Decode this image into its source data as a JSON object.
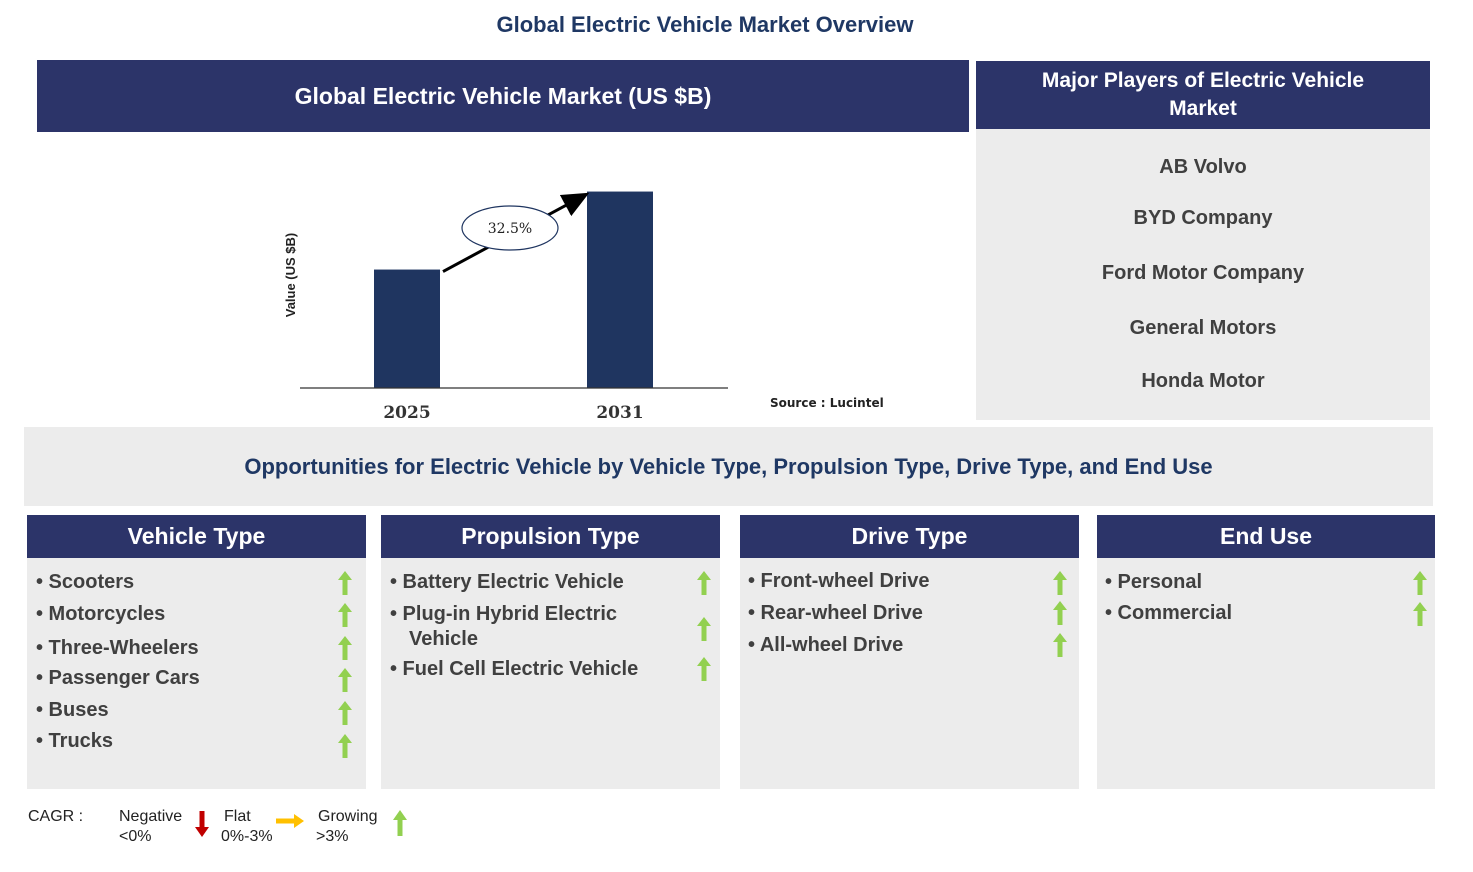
{
  "title": "Global Electric Vehicle Market Overview",
  "chart_header": "Global Electric Vehicle Market (US $B)",
  "chart_data": {
    "type": "bar",
    "categories": [
      "2025",
      "2031"
    ],
    "values": [
      41,
      68
    ],
    "ylim": [
      0,
      72
    ],
    "ylabel": "Value (US $B)",
    "xlabel": "",
    "annotation": "32.5%",
    "source": "Source : Lucintel",
    "bar_color": "#1f3560"
  },
  "players": {
    "title": "Major Players of Electric Vehicle Market",
    "items": [
      "AB Volvo",
      "BYD Company",
      "Ford Motor Company",
      "General Motors",
      "Honda Motor"
    ]
  },
  "opportunities_title": "Opportunities for Electric Vehicle by Vehicle Type, Propulsion Type, Drive Type, and End Use",
  "segments": [
    {
      "title": "Vehicle Type",
      "items": [
        {
          "label": "• Scooters",
          "trend": "growing"
        },
        {
          "label": "• Motorcycles",
          "trend": "growing"
        },
        {
          "label": "• Three-Wheelers",
          "trend": "growing"
        },
        {
          "label": "• Passenger Cars",
          "trend": "growing"
        },
        {
          "label": "• Buses",
          "trend": "growing"
        },
        {
          "label": "• Trucks",
          "trend": "growing"
        }
      ]
    },
    {
      "title": "Propulsion Type",
      "items": [
        {
          "label": "• Battery Electric Vehicle",
          "trend": "growing"
        },
        {
          "label": "• Plug-in Hybrid Electric",
          "label2": "Vehicle",
          "trend": "growing"
        },
        {
          "label": "• Fuel Cell Electric Vehicle",
          "trend": "growing"
        }
      ]
    },
    {
      "title": "Drive Type",
      "items": [
        {
          "label": "• Front-wheel Drive",
          "trend": "growing"
        },
        {
          "label": "• Rear-wheel Drive",
          "trend": "growing"
        },
        {
          "label": "• All-wheel  Drive",
          "trend": "growing"
        }
      ]
    },
    {
      "title": "End Use",
      "items": [
        {
          "label": "• Personal",
          "trend": "growing"
        },
        {
          "label": "• Commercial",
          "trend": "growing"
        }
      ]
    }
  ],
  "legend": {
    "label": "CAGR  :",
    "negative": {
      "line1": "Negative",
      "line2": "<0%",
      "color": "#c00000",
      "icon": "down-arrow-icon"
    },
    "flat": {
      "line1": "Flat",
      "line2": "0%-3%",
      "color": "#ffc000",
      "icon": "right-arrow-icon"
    },
    "growing": {
      "line1": "Growing",
      "line2": ">3%",
      "color": "#92d050",
      "icon": "up-arrow-icon"
    }
  },
  "colors": {
    "header_bg": "#2c3469",
    "panel_bg": "#ececec",
    "title_text": "#1f3864",
    "up_arrow": "#92d050"
  }
}
